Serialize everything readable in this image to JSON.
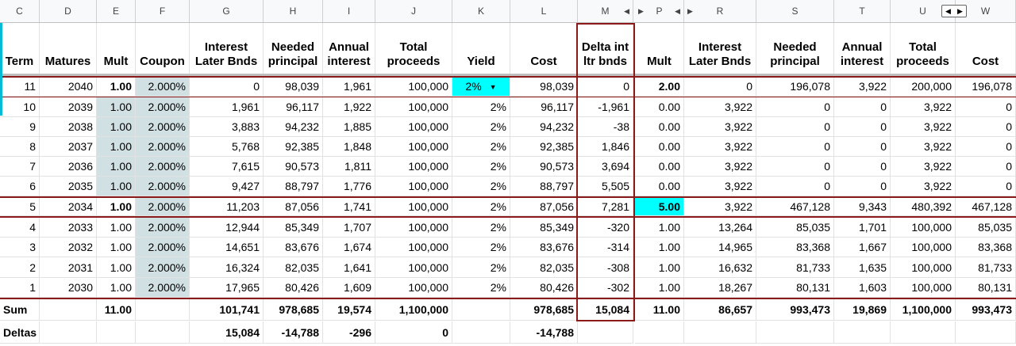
{
  "column_letters": [
    "C",
    "D",
    "E",
    "F",
    "G",
    "H",
    "I",
    "J",
    "K",
    "L",
    "M",
    "P",
    "R",
    "S",
    "T",
    "U",
    "W"
  ],
  "headers": {
    "term": "Term",
    "matures": "Matures",
    "mult": "Mult",
    "coupon": "Coupon",
    "interest_later": "Interest Later Bnds",
    "needed": "Needed principal",
    "annual": "Annual interest",
    "total": "Total proceeds",
    "yield": "Yield",
    "cost": "Cost",
    "delta": "Delta int ltr bnds",
    "mult2": "Mult",
    "interest_later2": "Interest Later Bnds",
    "needed2": "Needed principal",
    "annual2": "Annual interest",
    "total2": "Total proceeds",
    "cost2": "Cost"
  },
  "rows": [
    [
      "11",
      "2040",
      "1.00",
      "2.000%",
      "0",
      "98,039",
      "1,961",
      "100,000",
      "2%",
      "98,039",
      "0",
      "2.00",
      "0",
      "196,078",
      "3,922",
      "200,000",
      "196,078"
    ],
    [
      "10",
      "2039",
      "1.00",
      "2.000%",
      "1,961",
      "96,117",
      "1,922",
      "100,000",
      "2%",
      "96,117",
      "-1,961",
      "0.00",
      "3,922",
      "0",
      "0",
      "3,922",
      "0"
    ],
    [
      "9",
      "2038",
      "1.00",
      "2.000%",
      "3,883",
      "94,232",
      "1,885",
      "100,000",
      "2%",
      "94,232",
      "-38",
      "0.00",
      "3,922",
      "0",
      "0",
      "3,922",
      "0"
    ],
    [
      "8",
      "2037",
      "1.00",
      "2.000%",
      "5,768",
      "92,385",
      "1,848",
      "100,000",
      "2%",
      "92,385",
      "1,846",
      "0.00",
      "3,922",
      "0",
      "0",
      "3,922",
      "0"
    ],
    [
      "7",
      "2036",
      "1.00",
      "2.000%",
      "7,615",
      "90,573",
      "1,811",
      "100,000",
      "2%",
      "90,573",
      "3,694",
      "0.00",
      "3,922",
      "0",
      "0",
      "3,922",
      "0"
    ],
    [
      "6",
      "2035",
      "1.00",
      "2.000%",
      "9,427",
      "88,797",
      "1,776",
      "100,000",
      "2%",
      "88,797",
      "5,505",
      "0.00",
      "3,922",
      "0",
      "0",
      "3,922",
      "0"
    ],
    [
      "5",
      "2034",
      "1.00",
      "2.000%",
      "11,203",
      "87,056",
      "1,741",
      "100,000",
      "2%",
      "87,056",
      "7,281",
      "5.00",
      "3,922",
      "467,128",
      "9,343",
      "480,392",
      "467,128"
    ],
    [
      "4",
      "2033",
      "1.00",
      "2.000%",
      "12,944",
      "85,349",
      "1,707",
      "100,000",
      "2%",
      "85,349",
      "-320",
      "1.00",
      "13,264",
      "85,035",
      "1,701",
      "100,000",
      "85,035"
    ],
    [
      "3",
      "2032",
      "1.00",
      "2.000%",
      "14,651",
      "83,676",
      "1,674",
      "100,000",
      "2%",
      "83,676",
      "-314",
      "1.00",
      "14,965",
      "83,368",
      "1,667",
      "100,000",
      "83,368"
    ],
    [
      "2",
      "2031",
      "1.00",
      "2.000%",
      "16,324",
      "82,035",
      "1,641",
      "100,000",
      "2%",
      "82,035",
      "-308",
      "1.00",
      "16,632",
      "81,733",
      "1,635",
      "100,000",
      "81,733"
    ],
    [
      "1",
      "2030",
      "1.00",
      "2.000%",
      "17,965",
      "80,426",
      "1,609",
      "100,000",
      "2%",
      "80,426",
      "-302",
      "1.00",
      "18,267",
      "80,131",
      "1,603",
      "100,000",
      "80,131"
    ]
  ],
  "sum": [
    "Sum",
    "",
    "11.00",
    "",
    "101,741",
    "978,685",
    "19,574",
    "1,100,000",
    "",
    "978,685",
    "15,084",
    "11.00",
    "86,657",
    "993,473",
    "19,869",
    "1,100,000",
    "993,473"
  ],
  "deltas": [
    "Deltas",
    "",
    "",
    "",
    "15,084",
    "-14,788",
    "-296",
    "0",
    "",
    "-14,788",
    "",
    "",
    "",
    "",
    "",
    "",
    ""
  ],
  "colors": {
    "dark_red": "#8b1a1a",
    "light_blue": "#d0e0e3",
    "cyan": "#00ffff",
    "selection": "#1a73e8"
  }
}
